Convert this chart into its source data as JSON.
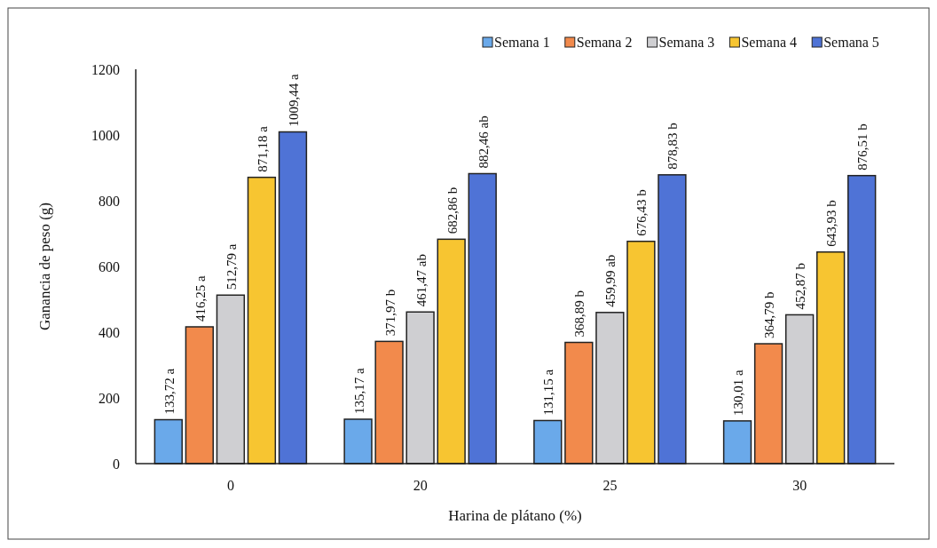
{
  "chart_data": {
    "type": "bar",
    "xlabel": "Harina de plátano (%)",
    "ylabel": "Ganancia de peso (g)",
    "categories": [
      "0",
      "20",
      "25",
      "30"
    ],
    "ylim": [
      0,
      1200
    ],
    "yticks": [
      0,
      200,
      400,
      600,
      800,
      1000,
      1200
    ],
    "grid": false,
    "legend": "top right",
    "series": [
      {
        "name": "Semana 1",
        "color": "#6aa9ea",
        "values": [
          133.72,
          135.17,
          131.15,
          130.01
        ],
        "value_labels": [
          "133,72 a",
          "135,17 a",
          "131,15 a",
          "130,01 a"
        ]
      },
      {
        "name": "Semana 2",
        "color": "#f28a4c",
        "values": [
          416.25,
          371.97,
          368.89,
          364.79
        ],
        "value_labels": [
          "416,25 a",
          "371,97 b",
          "368,89 b",
          "364,79 b"
        ]
      },
      {
        "name": "Semana 3",
        "color": "#cfcfd2",
        "values": [
          512.79,
          461.47,
          459.99,
          452.87
        ],
        "value_labels": [
          "512,79 a",
          "461,47 ab",
          "459,99 ab",
          "452,87 b"
        ]
      },
      {
        "name": "Semana 4",
        "color": "#f7c531",
        "values": [
          871.18,
          682.86,
          676.43,
          643.93
        ],
        "value_labels": [
          "871,18 a",
          "682,86 b",
          "676,43 b",
          "643,93 b"
        ]
      },
      {
        "name": "Semana 5",
        "color": "#4f73d6",
        "values": [
          1009.44,
          882.46,
          878.83,
          876.51
        ],
        "value_labels": [
          "1009,44 a",
          "882,46 ab",
          "878,83 b",
          "876,51 b"
        ]
      }
    ]
  }
}
